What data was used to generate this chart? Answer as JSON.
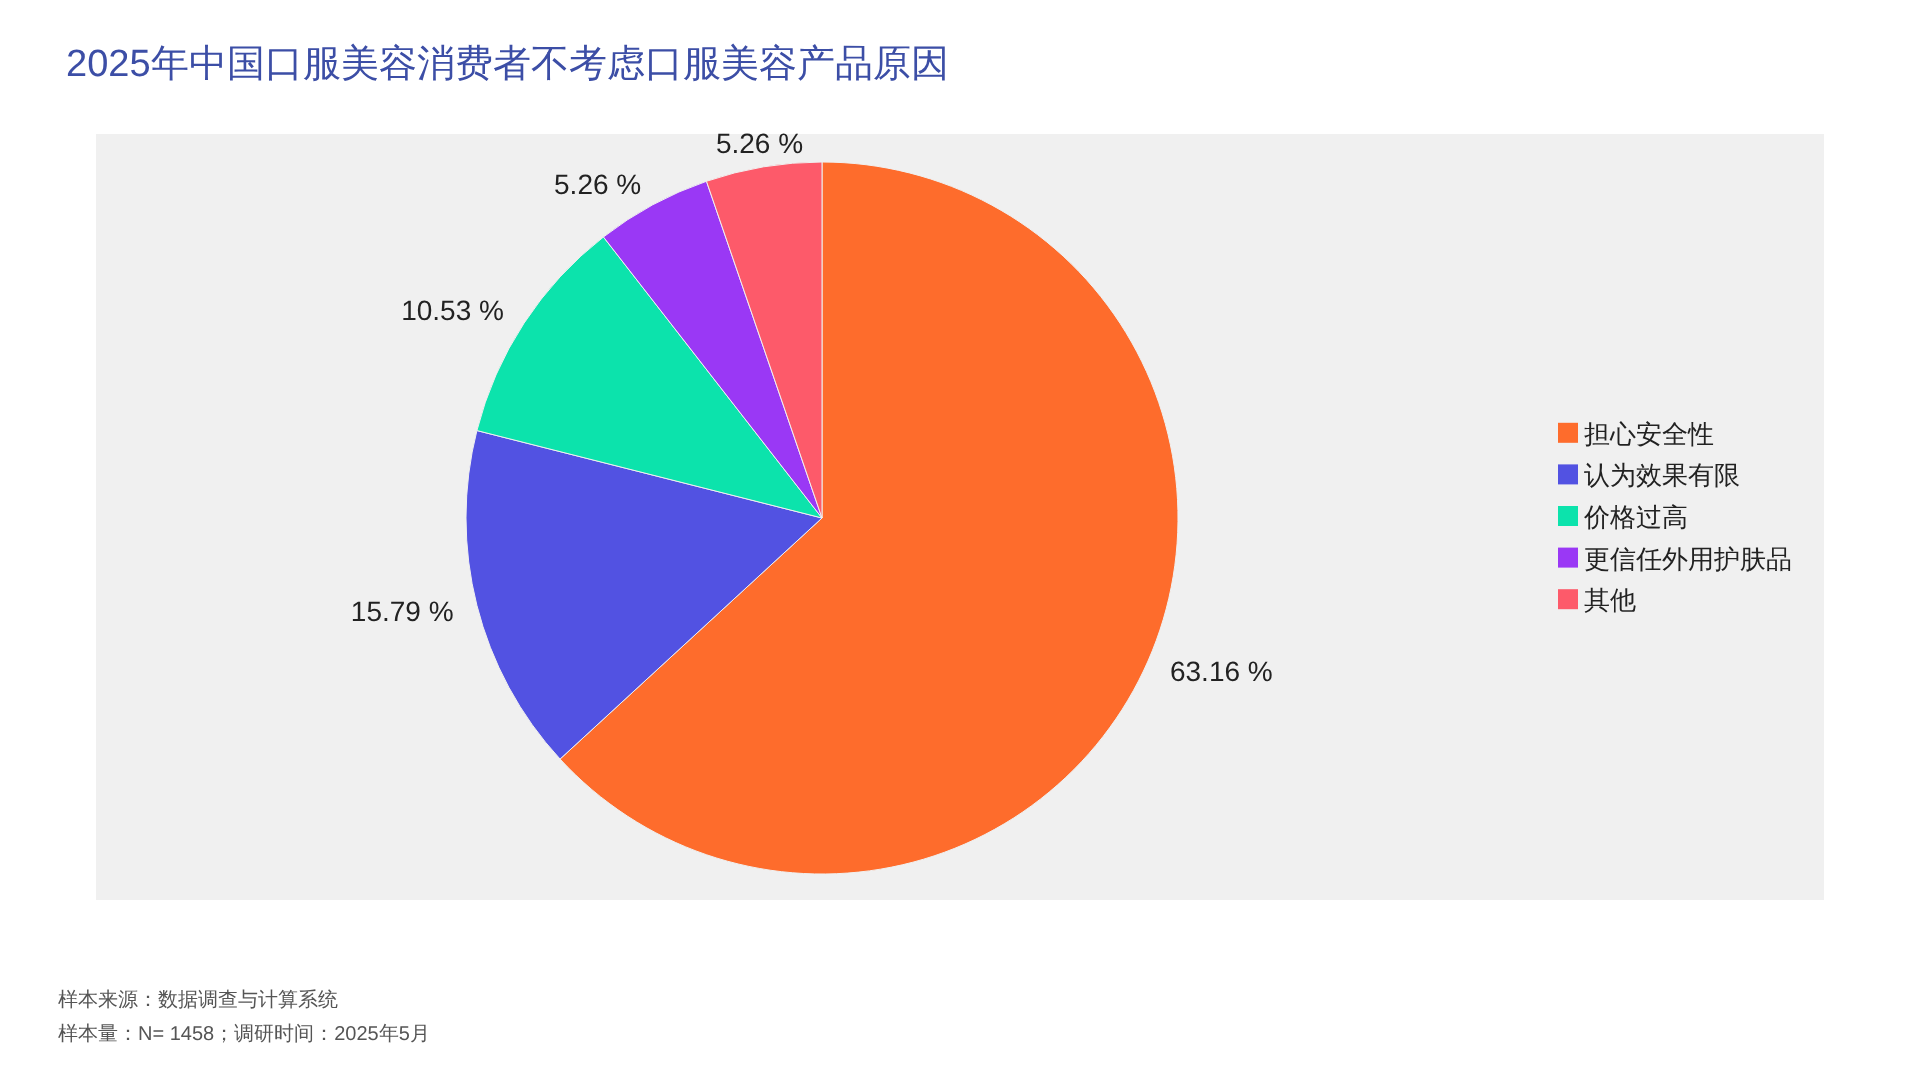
{
  "chart_data": {
    "type": "pie",
    "title": "2025年中国口服美容消费者不考虑口服美容产品原因",
    "categories": [
      "担心安全性",
      "认为效果有限",
      "价格过高",
      "更信任外用护肤品",
      "其他"
    ],
    "values": [
      63.16,
      15.79,
      10.53,
      5.26,
      5.26
    ],
    "colors": [
      "#fe6c2c",
      "#5252e2",
      "#0ce3ac",
      "#9a38f5",
      "#fd5a6a"
    ],
    "value_labels": [
      "63.16 %",
      "15.79 %",
      "10.53 %",
      "5.26 %",
      "5.26 %"
    ],
    "legend": "right",
    "annotations": [
      "样本来源：数据调查与计算系统",
      "样本量：N= 1458；调研时间：2025年5月"
    ]
  }
}
